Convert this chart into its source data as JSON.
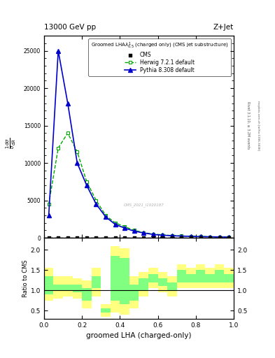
{
  "title_top": "13000 GeV pp",
  "title_right": "Z+Jet",
  "plot_title": "Groomed LHA$\\lambda^{1}_{0.5}$ (charged only) (CMS jet substructure)",
  "xlabel": "groomed LHA (charged-only)",
  "right_label1": "Rivet 3.1.10, ≥ 3.2M events",
  "right_label2": "mcplots.cern.ch [arXiv:1306.3436]",
  "watermark": "CMS_2021_I1920187",
  "herwig_x": [
    0.025,
    0.075,
    0.125,
    0.175,
    0.225,
    0.275,
    0.325,
    0.375,
    0.425,
    0.475,
    0.525,
    0.575,
    0.625,
    0.675,
    0.725,
    0.775,
    0.825,
    0.875,
    0.925,
    0.975
  ],
  "herwig_y": [
    4500,
    12000,
    14000,
    11500,
    7500,
    5000,
    3000,
    2000,
    1500,
    1000,
    700,
    500,
    400,
    300,
    250,
    200,
    180,
    150,
    120,
    100
  ],
  "pythia_x": [
    0.025,
    0.075,
    0.125,
    0.175,
    0.225,
    0.275,
    0.325,
    0.375,
    0.425,
    0.475,
    0.525,
    0.575,
    0.625,
    0.675,
    0.725,
    0.775,
    0.825,
    0.875,
    0.925,
    0.975
  ],
  "pythia_y": [
    3000,
    25000,
    18000,
    10000,
    7000,
    4500,
    2800,
    1800,
    1300,
    900,
    650,
    450,
    350,
    280,
    230,
    190,
    160,
    140,
    110,
    90
  ],
  "ylim_main": [
    0,
    27000
  ],
  "ylim_ratio": [
    0.3,
    2.3
  ],
  "ratio_yticks": [
    0.5,
    1.0,
    1.5,
    2.0
  ],
  "herwig_color": "#00aa00",
  "pythia_color": "#0000cc",
  "cms_color": "#000000",
  "yellow_color": "#ffff80",
  "green_color": "#80ff80",
  "bin_edges": [
    0.0,
    0.05,
    0.1,
    0.15,
    0.2,
    0.25,
    0.3,
    0.35,
    0.4,
    0.45,
    0.5,
    0.55,
    0.6,
    0.65,
    0.7,
    0.75,
    0.8,
    0.85,
    0.9,
    0.95,
    1.0
  ],
  "ratio_yellow_lo": [
    0.75,
    0.8,
    0.85,
    0.8,
    0.55,
    0.85,
    0.35,
    0.45,
    0.4,
    0.55,
    0.85,
    1.05,
    0.95,
    0.85,
    1.05,
    1.05,
    1.05,
    1.05,
    1.05,
    1.05
  ],
  "ratio_yellow_hi": [
    1.55,
    1.35,
    1.35,
    1.3,
    1.25,
    1.55,
    0.65,
    2.1,
    2.05,
    1.35,
    1.45,
    1.55,
    1.45,
    1.35,
    1.65,
    1.55,
    1.65,
    1.55,
    1.65,
    1.55
  ],
  "ratio_green_lo": [
    0.9,
    1.0,
    1.0,
    0.95,
    0.75,
    1.05,
    0.45,
    0.75,
    0.65,
    0.75,
    1.0,
    1.2,
    1.1,
    1.0,
    1.2,
    1.2,
    1.2,
    1.2,
    1.2,
    1.2
  ],
  "ratio_green_hi": [
    1.35,
    1.15,
    1.15,
    1.15,
    1.05,
    1.35,
    0.55,
    1.85,
    1.8,
    1.15,
    1.3,
    1.4,
    1.3,
    1.2,
    1.5,
    1.4,
    1.5,
    1.4,
    1.5,
    1.4
  ]
}
